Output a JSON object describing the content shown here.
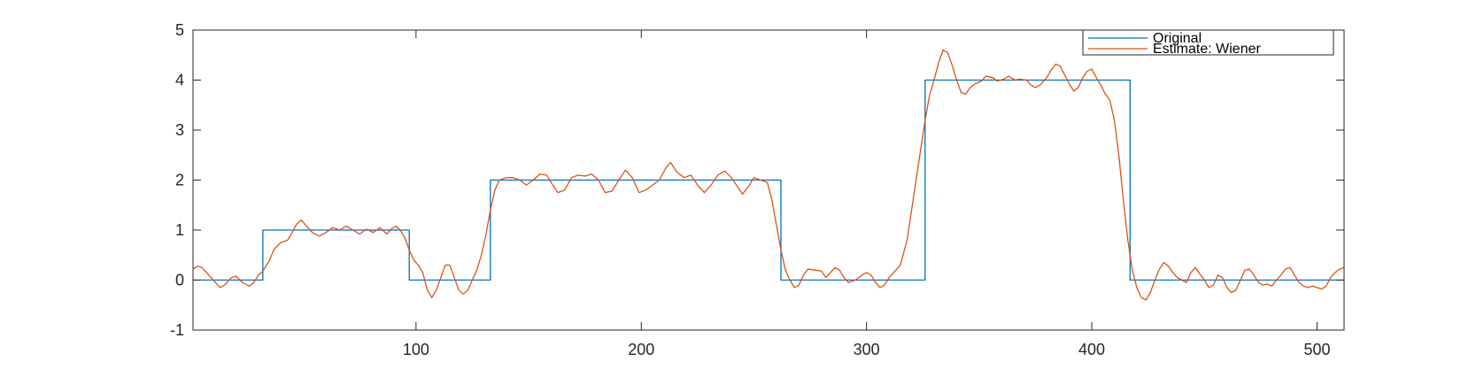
{
  "chart_data": {
    "type": "line",
    "title": "",
    "xlabel": "",
    "ylabel": "",
    "xlim": [
      1,
      512
    ],
    "ylim": [
      -1,
      5
    ],
    "xticks": [
      100,
      200,
      300,
      400,
      500
    ],
    "yticks": [
      -1,
      0,
      1,
      2,
      3,
      4,
      5
    ],
    "grid": false,
    "legend": "top-right",
    "series": [
      {
        "name": "Original",
        "color": "#0072BD",
        "style": "step",
        "points": [
          [
            1,
            0
          ],
          [
            32,
            0
          ],
          [
            32,
            1
          ],
          [
            97,
            1
          ],
          [
            97,
            0
          ],
          [
            133,
            0
          ],
          [
            133,
            2
          ],
          [
            262,
            2
          ],
          [
            262,
            0
          ],
          [
            326,
            0
          ],
          [
            326,
            4
          ],
          [
            417,
            4
          ],
          [
            417,
            0
          ],
          [
            512,
            0
          ]
        ]
      },
      {
        "name": "Estimate: Wiener",
        "color": "#D95319",
        "style": "line",
        "points": [
          [
            1,
            0.22
          ],
          [
            3,
            0.28
          ],
          [
            5,
            0.25
          ],
          [
            8,
            0.1
          ],
          [
            11,
            -0.05
          ],
          [
            13,
            -0.15
          ],
          [
            15,
            -0.1
          ],
          [
            18,
            0.05
          ],
          [
            20,
            0.08
          ],
          [
            23,
            -0.05
          ],
          [
            26,
            -0.12
          ],
          [
            28,
            -0.05
          ],
          [
            30,
            0.1
          ],
          [
            32,
            0.18
          ],
          [
            35,
            0.4
          ],
          [
            37,
            0.62
          ],
          [
            40,
            0.75
          ],
          [
            43,
            0.8
          ],
          [
            45,
            0.95
          ],
          [
            47,
            1.12
          ],
          [
            49,
            1.2
          ],
          [
            51,
            1.1
          ],
          [
            54,
            0.95
          ],
          [
            57,
            0.88
          ],
          [
            60,
            0.95
          ],
          [
            63,
            1.05
          ],
          [
            66,
            1.0
          ],
          [
            69,
            1.08
          ],
          [
            72,
            1.0
          ],
          [
            75,
            0.92
          ],
          [
            78,
            1.02
          ],
          [
            81,
            0.95
          ],
          [
            84,
            1.05
          ],
          [
            87,
            0.92
          ],
          [
            89,
            1.02
          ],
          [
            91,
            1.08
          ],
          [
            93,
            1.0
          ],
          [
            95,
            0.85
          ],
          [
            97,
            0.6
          ],
          [
            99,
            0.4
          ],
          [
            101,
            0.3
          ],
          [
            103,
            0.15
          ],
          [
            105,
            -0.2
          ],
          [
            107,
            -0.35
          ],
          [
            109,
            -0.2
          ],
          [
            111,
            0.05
          ],
          [
            113,
            0.3
          ],
          [
            115,
            0.3
          ],
          [
            117,
            0.05
          ],
          [
            119,
            -0.2
          ],
          [
            121,
            -0.28
          ],
          [
            123,
            -0.2
          ],
          [
            125,
            0.0
          ],
          [
            127,
            0.2
          ],
          [
            129,
            0.5
          ],
          [
            131,
            0.9
          ],
          [
            133,
            1.4
          ],
          [
            135,
            1.8
          ],
          [
            137,
            2.0
          ],
          [
            140,
            2.05
          ],
          [
            143,
            2.05
          ],
          [
            146,
            2.0
          ],
          [
            149,
            1.9
          ],
          [
            152,
            2.0
          ],
          [
            155,
            2.12
          ],
          [
            158,
            2.1
          ],
          [
            160,
            1.95
          ],
          [
            163,
            1.75
          ],
          [
            166,
            1.8
          ],
          [
            169,
            2.05
          ],
          [
            172,
            2.1
          ],
          [
            175,
            2.08
          ],
          [
            178,
            2.12
          ],
          [
            181,
            2.0
          ],
          [
            184,
            1.75
          ],
          [
            187,
            1.78
          ],
          [
            190,
            2.0
          ],
          [
            193,
            2.2
          ],
          [
            196,
            2.05
          ],
          [
            199,
            1.75
          ],
          [
            202,
            1.8
          ],
          [
            205,
            1.9
          ],
          [
            208,
            2.0
          ],
          [
            211,
            2.25
          ],
          [
            213,
            2.35
          ],
          [
            216,
            2.15
          ],
          [
            219,
            2.05
          ],
          [
            222,
            2.1
          ],
          [
            225,
            1.9
          ],
          [
            228,
            1.75
          ],
          [
            231,
            1.9
          ],
          [
            234,
            2.1
          ],
          [
            237,
            2.18
          ],
          [
            240,
            2.05
          ],
          [
            243,
            1.85
          ],
          [
            245,
            1.72
          ],
          [
            248,
            1.9
          ],
          [
            250,
            2.05
          ],
          [
            253,
            2.0
          ],
          [
            256,
            1.95
          ],
          [
            258,
            1.6
          ],
          [
            260,
            1.1
          ],
          [
            262,
            0.6
          ],
          [
            264,
            0.2
          ],
          [
            266,
            0.0
          ],
          [
            268,
            -0.15
          ],
          [
            270,
            -0.1
          ],
          [
            272,
            0.1
          ],
          [
            274,
            0.22
          ],
          [
            277,
            0.2
          ],
          [
            280,
            0.18
          ],
          [
            282,
            0.05
          ],
          [
            284,
            0.15
          ],
          [
            286,
            0.25
          ],
          [
            288,
            0.2
          ],
          [
            290,
            0.05
          ],
          [
            292,
            -0.05
          ],
          [
            295,
            0.0
          ],
          [
            298,
            0.1
          ],
          [
            300,
            0.15
          ],
          [
            302,
            0.1
          ],
          [
            304,
            -0.05
          ],
          [
            306,
            -0.15
          ],
          [
            308,
            -0.1
          ],
          [
            310,
            0.05
          ],
          [
            312,
            0.15
          ],
          [
            315,
            0.3
          ],
          [
            318,
            0.8
          ],
          [
            320,
            1.4
          ],
          [
            322,
            2.0
          ],
          [
            324,
            2.6
          ],
          [
            326,
            3.2
          ],
          [
            328,
            3.7
          ],
          [
            330,
            4.0
          ],
          [
            332,
            4.35
          ],
          [
            334,
            4.6
          ],
          [
            336,
            4.55
          ],
          [
            338,
            4.3
          ],
          [
            340,
            4.0
          ],
          [
            342,
            3.75
          ],
          [
            344,
            3.72
          ],
          [
            346,
            3.85
          ],
          [
            348,
            3.92
          ],
          [
            351,
            3.98
          ],
          [
            353,
            4.08
          ],
          [
            356,
            4.05
          ],
          [
            358,
            3.98
          ],
          [
            361,
            4.02
          ],
          [
            363,
            4.08
          ],
          [
            366,
            4.0
          ],
          [
            368,
            4.02
          ],
          [
            371,
            4.0
          ],
          [
            373,
            3.9
          ],
          [
            375,
            3.85
          ],
          [
            377,
            3.9
          ],
          [
            380,
            4.05
          ],
          [
            382,
            4.2
          ],
          [
            384,
            4.32
          ],
          [
            386,
            4.28
          ],
          [
            388,
            4.1
          ],
          [
            390,
            3.92
          ],
          [
            392,
            3.78
          ],
          [
            394,
            3.85
          ],
          [
            396,
            4.05
          ],
          [
            398,
            4.18
          ],
          [
            400,
            4.22
          ],
          [
            402,
            4.05
          ],
          [
            404,
            3.9
          ],
          [
            406,
            3.72
          ],
          [
            408,
            3.6
          ],
          [
            410,
            3.2
          ],
          [
            412,
            2.5
          ],
          [
            414,
            1.6
          ],
          [
            416,
            0.8
          ],
          [
            418,
            0.2
          ],
          [
            420,
            -0.15
          ],
          [
            422,
            -0.35
          ],
          [
            424,
            -0.4
          ],
          [
            426,
            -0.25
          ],
          [
            428,
            0.0
          ],
          [
            430,
            0.22
          ],
          [
            432,
            0.35
          ],
          [
            434,
            0.28
          ],
          [
            436,
            0.15
          ],
          [
            438,
            0.05
          ],
          [
            440,
            0.0
          ],
          [
            442,
            -0.05
          ],
          [
            444,
            0.15
          ],
          [
            446,
            0.25
          ],
          [
            448,
            0.12
          ],
          [
            450,
            0.0
          ],
          [
            452,
            -0.15
          ],
          [
            454,
            -0.1
          ],
          [
            456,
            0.1
          ],
          [
            458,
            0.05
          ],
          [
            460,
            -0.15
          ],
          [
            462,
            -0.25
          ],
          [
            464,
            -0.2
          ],
          [
            466,
            0.0
          ],
          [
            468,
            0.2
          ],
          [
            470,
            0.22
          ],
          [
            472,
            0.1
          ],
          [
            474,
            -0.05
          ],
          [
            476,
            -0.1
          ],
          [
            478,
            -0.08
          ],
          [
            480,
            -0.12
          ],
          [
            482,
            0.0
          ],
          [
            484,
            0.1
          ],
          [
            486,
            0.22
          ],
          [
            488,
            0.25
          ],
          [
            490,
            0.1
          ],
          [
            492,
            -0.05
          ],
          [
            494,
            -0.12
          ],
          [
            496,
            -0.15
          ],
          [
            498,
            -0.12
          ],
          [
            500,
            -0.15
          ],
          [
            502,
            -0.18
          ],
          [
            504,
            -0.12
          ],
          [
            506,
            0.05
          ],
          [
            508,
            0.15
          ],
          [
            510,
            0.22
          ],
          [
            512,
            0.25
          ]
        ]
      }
    ]
  }
}
